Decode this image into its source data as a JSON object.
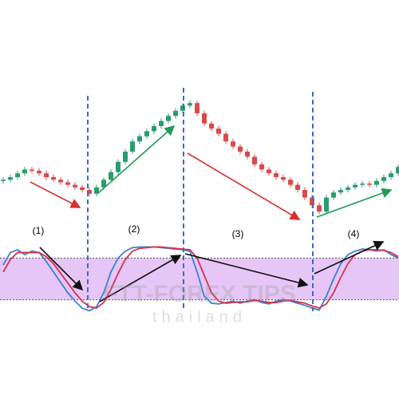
{
  "chart_data": {
    "type": "candlestick",
    "open": [
      27,
      28,
      30,
      33,
      36,
      35,
      33,
      30,
      28,
      26,
      24,
      22,
      20,
      17,
      22,
      28,
      34,
      42,
      50,
      58,
      62,
      66,
      70,
      74,
      78,
      82,
      86,
      88,
      80,
      72,
      68,
      64,
      58,
      54,
      50,
      46,
      40,
      36,
      33,
      30,
      28,
      24,
      20,
      14,
      8,
      3,
      14,
      18,
      20,
      22,
      24,
      25,
      24,
      27,
      30,
      33
    ],
    "high": [
      30,
      32,
      35,
      38,
      38,
      37,
      35,
      32,
      30,
      28,
      26,
      24,
      22,
      24,
      30,
      36,
      44,
      52,
      60,
      64,
      68,
      72,
      76,
      80,
      84,
      88,
      90,
      90,
      82,
      74,
      70,
      66,
      60,
      56,
      52,
      48,
      42,
      38,
      35,
      32,
      30,
      26,
      22,
      16,
      10,
      16,
      20,
      22,
      24,
      26,
      27,
      27,
      29,
      32,
      35,
      40
    ],
    "low": [
      25,
      26,
      28,
      31,
      33,
      31,
      28,
      26,
      24,
      22,
      20,
      18,
      15,
      15,
      20,
      26,
      32,
      40,
      48,
      56,
      60,
      64,
      68,
      72,
      76,
      80,
      84,
      78,
      70,
      66,
      62,
      56,
      52,
      48,
      44,
      38,
      34,
      31,
      28,
      26,
      22,
      18,
      12,
      6,
      1,
      1,
      12,
      16,
      18,
      20,
      22,
      22,
      22,
      25,
      28,
      31
    ],
    "close": [
      28,
      30,
      33,
      36,
      35,
      33,
      30,
      28,
      26,
      24,
      22,
      20,
      17,
      22,
      28,
      34,
      42,
      50,
      58,
      62,
      66,
      70,
      74,
      78,
      82,
      86,
      88,
      80,
      72,
      68,
      64,
      58,
      54,
      50,
      46,
      40,
      36,
      33,
      30,
      28,
      24,
      20,
      14,
      8,
      3,
      14,
      18,
      20,
      22,
      24,
      25,
      24,
      27,
      30,
      33,
      38
    ],
    "ylim": [
      0,
      100
    ],
    "up_color": "#2a9d6e",
    "down_color": "#d94b4b",
    "oscillator": {
      "ylim": [
        0,
        100
      ],
      "bands": [
        20,
        80
      ],
      "band_color": "#e6c6f7",
      "series": [
        {
          "color": "#3a7fd5",
          "values": [
            70,
            88,
            92,
            85,
            90,
            88,
            75,
            60,
            45,
            30,
            18,
            8,
            4,
            10,
            30,
            60,
            80,
            90,
            95,
            96,
            96,
            96,
            95,
            94,
            93,
            92,
            90,
            60,
            25,
            15,
            14,
            16,
            18,
            15,
            18,
            20,
            16,
            14,
            18,
            20,
            18,
            15,
            12,
            8,
            5,
            25,
            50,
            72,
            85,
            90,
            93,
            92,
            90,
            92,
            85,
            80
          ]
        },
        {
          "color": "#d9304a",
          "values": [
            60,
            78,
            88,
            88,
            88,
            88,
            82,
            72,
            58,
            44,
            30,
            18,
            10,
            8,
            16,
            35,
            58,
            78,
            90,
            94,
            95,
            96,
            96,
            95,
            94,
            93,
            92,
            80,
            55,
            30,
            18,
            15,
            16,
            17,
            17,
            19,
            18,
            16,
            16,
            18,
            19,
            17,
            15,
            11,
            8,
            14,
            30,
            52,
            72,
            85,
            90,
            92,
            92,
            91,
            88,
            82
          ]
        }
      ]
    },
    "annotations": [
      "(1)",
      "(2)",
      "(3)",
      "(4)"
    ],
    "watermark": "FTT-FOREX TIPS",
    "watermark_sub": "thailand"
  }
}
